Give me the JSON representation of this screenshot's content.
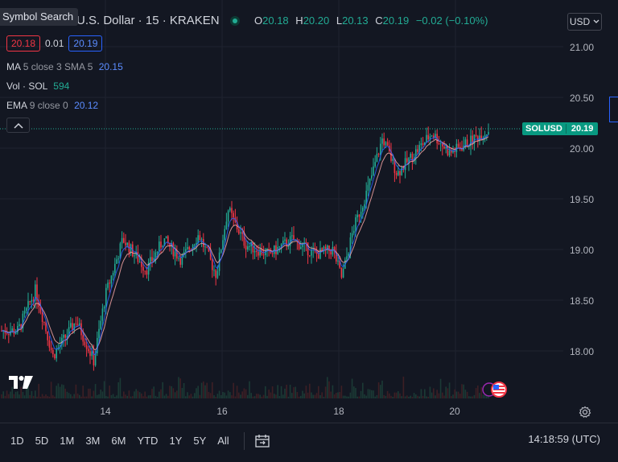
{
  "header": {
    "tooltip": "Symbol Search",
    "title": "U.S. Dollar · 15 · KRAKEN",
    "ohlc": {
      "o_label": "O",
      "o": "20.18",
      "h_label": "H",
      "h": "20.20",
      "l_label": "L",
      "l": "20.13",
      "c_label": "C",
      "c": "20.19",
      "change": "−0.02 (−0.10%)"
    },
    "bid": "20.18",
    "spread": "0.01",
    "ask": "20.19"
  },
  "indicators": {
    "ma": {
      "label": "MA",
      "params": "5 close 3 SMA 5",
      "value": "20.15"
    },
    "vol": {
      "label": "Vol · SOL",
      "value": "594"
    },
    "ema": {
      "label": "EMA",
      "params": "9 close 0",
      "value": "20.12"
    }
  },
  "currency": "USD",
  "price_label": {
    "symbol": "SOLUSD",
    "price": "20.19"
  },
  "y_ticks": [
    "21.00",
    "20.50",
    "20.00",
    "19.50",
    "19.00",
    "18.50",
    "18.00"
  ],
  "x_ticks": [
    "14",
    "16",
    "18",
    "20"
  ],
  "ranges": [
    "1D",
    "5D",
    "1M",
    "3M",
    "6M",
    "YTD",
    "1Y",
    "5Y",
    "All"
  ],
  "clock": "14:18:59 (UTC)",
  "colors": {
    "background": "#131722",
    "up": "#22ab94",
    "down": "#f23645",
    "ma_line": "#2962ff",
    "ema_line": "#f7a6a6"
  },
  "icons": {
    "collapse": "chevron-up-icon",
    "currency": "chevron-down-icon",
    "calendar": "calendar-range-icon",
    "settings": "gear-icon",
    "logo": "tradingview-logo",
    "flag": "us-flag-icon"
  },
  "chart_data": {
    "type": "candlestick",
    "symbol": "SOLUSD",
    "ylim": [
      17.6,
      21.3
    ],
    "x_days": [
      "14",
      "16",
      "18",
      "20"
    ],
    "last_price": 20.19,
    "path_days": [
      12.5,
      12.8,
      13.1,
      13.5,
      13.8,
      14.0,
      14.3,
      14.7,
      15.0,
      15.3,
      15.6,
      15.9,
      16.1,
      16.4,
      16.8,
      17.2,
      17.6,
      17.9,
      18.05,
      18.25,
      18.5,
      18.75,
      19.0,
      19.3,
      19.6,
      19.9,
      20.2,
      20.6
    ],
    "path_prices": [
      18.2,
      18.6,
      17.95,
      18.3,
      17.9,
      18.55,
      19.1,
      18.8,
      19.1,
      18.9,
      19.15,
      18.75,
      19.4,
      19.05,
      18.95,
      19.1,
      18.95,
      19.0,
      18.72,
      19.2,
      19.6,
      20.1,
      19.75,
      19.95,
      20.15,
      19.95,
      20.05,
      20.19
    ]
  }
}
